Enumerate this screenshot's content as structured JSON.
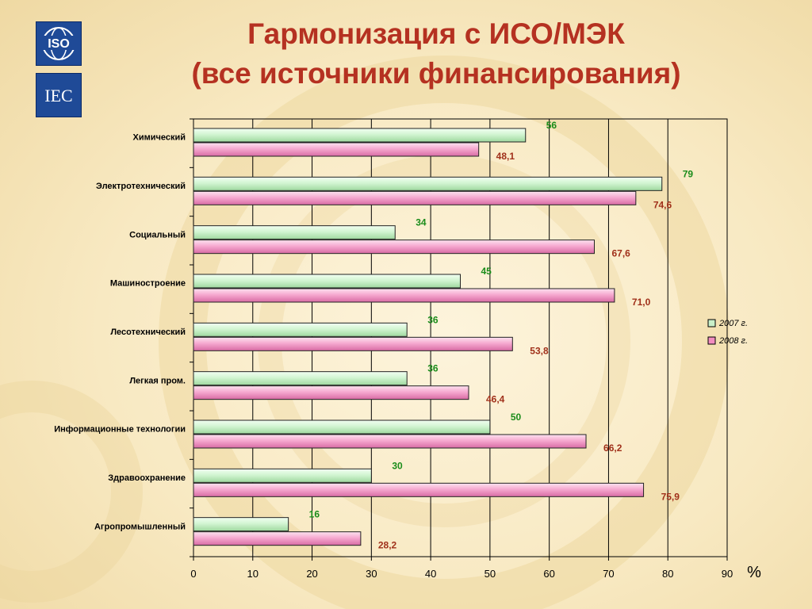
{
  "title": {
    "line1": "Гармонизация с ИСО/МЭК",
    "line2": "(все источники финансирования)"
  },
  "logos": {
    "iso_text": "ISO",
    "iec_text": "IEC"
  },
  "colors": {
    "title": "#b53121",
    "series_2007": "#c9f0c9",
    "series_2008": "#f28dc0",
    "label_2007": "#1a8c1a",
    "label_2008": "#a0301a",
    "logo_bg": "#1f4a97"
  },
  "chart_data": {
    "type": "bar",
    "orientation": "horizontal",
    "categories": [
      "Химический",
      "Электротехнический",
      "Социальный",
      "Машиностроение",
      "Лесотехнический",
      "Легкая пром.",
      "Информационные технологии",
      "Здравоохранение",
      "Агропромышленный"
    ],
    "series": [
      {
        "name": "2007 г.",
        "values": [
          56,
          79,
          34,
          45,
          36,
          36,
          50,
          30,
          16
        ],
        "labels": [
          "56",
          "79",
          "34",
          "45",
          "36",
          "36",
          "50",
          "30",
          "16"
        ]
      },
      {
        "name": "2008 г.",
        "values": [
          48.1,
          74.6,
          67.6,
          71.0,
          53.8,
          46.4,
          66.2,
          75.9,
          28.2
        ],
        "labels": [
          "48,1",
          "74,6",
          "67,6",
          "71,0",
          "53,8",
          "46,4",
          "66,2",
          "75,9",
          "28,2"
        ]
      }
    ],
    "xlim": [
      0,
      90
    ],
    "xticks": [
      "0",
      "10",
      "20",
      "30",
      "40",
      "50",
      "60",
      "70",
      "80",
      "90"
    ],
    "x_unit": "%",
    "grid": true,
    "legend_position": "right"
  }
}
